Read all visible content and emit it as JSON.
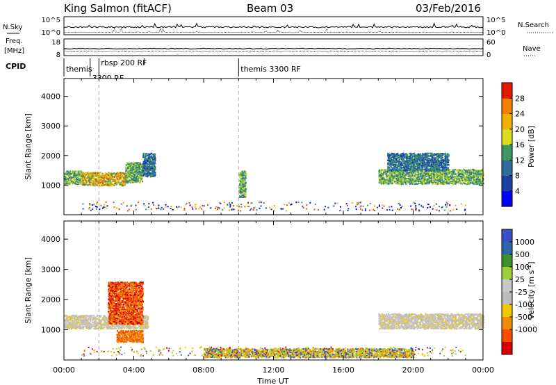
{
  "header": {
    "station": "King Salmon (fitACF)",
    "beam": "Beam 03",
    "date": "03/Feb/2016"
  },
  "noise_panel": {
    "left_label": "N.Sky",
    "right_label": "N.Search",
    "left_ticks": [
      "10^5",
      "10^0"
    ],
    "right_ticks": [
      "10^5",
      "10^0"
    ]
  },
  "freq_panel": {
    "left_label_1": "Freq.",
    "left_label_2": "[MHz]",
    "right_label": "Nave",
    "left_ticks": [
      "18",
      "8"
    ],
    "right_ticks": [
      "60",
      "0"
    ]
  },
  "cpid": {
    "label": "CPID",
    "segments": [
      {
        "start_hour": 0.0,
        "text": "themis"
      },
      {
        "start_hour": 1.5,
        "text": "3300 RF"
      },
      {
        "start_hour": 2.0,
        "text": "rbsp 200 RF"
      },
      {
        "start_hour": 10.0,
        "text": "themis 3300 RF"
      }
    ]
  },
  "colors": {
    "power": [
      "#0000ff",
      "#1d3fa8",
      "#2e6fa0",
      "#3d9960",
      "#79c043",
      "#dcdc1e",
      "#f2b000",
      "#f27f00",
      "#f04a00",
      "#e31a00",
      "#d70000"
    ],
    "velocity": [
      "#3a4fc8",
      "#2f66a8",
      "#3f8f2f",
      "#9bd03a",
      "#c8c8c8",
      "#bcbcbc",
      "#f0c800",
      "#f08c00",
      "#f05000",
      "#d70000"
    ]
  },
  "chart_data": [
    {
      "type": "heatmap",
      "name": "power",
      "xlabel": "",
      "ylabel": "Slant Range [km]",
      "xlim": [
        0,
        24
      ],
      "ylim": [
        0,
        4600
      ],
      "yticks": [
        1000,
        2000,
        3000,
        4000
      ],
      "colorbar_label": "Power [dB]",
      "colorbar_range": [
        0,
        32
      ],
      "colorbar_ticks": [
        4,
        8,
        12,
        16,
        20,
        24,
        28
      ],
      "dashed_lines_hours": [
        2.0,
        10.0
      ],
      "regions": [
        {
          "t": [
            0.0,
            1.0
          ],
          "r": [
            1050,
            1500
          ],
          "level": "medium"
        },
        {
          "t": [
            1.0,
            3.5
          ],
          "r": [
            1000,
            1450
          ],
          "level": "high"
        },
        {
          "t": [
            3.5,
            4.5
          ],
          "r": [
            1100,
            1800
          ],
          "level": "medium"
        },
        {
          "t": [
            4.5,
            5.2
          ],
          "r": [
            1300,
            2100
          ],
          "level": "low"
        },
        {
          "t": [
            18.0,
            24.0
          ],
          "r": [
            1050,
            1550
          ],
          "level": "medium"
        },
        {
          "t": [
            18.5,
            22.0
          ],
          "r": [
            1500,
            2100
          ],
          "level": "low"
        },
        {
          "t": [
            10.0,
            10.4
          ],
          "r": [
            600,
            1500
          ],
          "level": "medium"
        }
      ]
    },
    {
      "type": "heatmap",
      "name": "velocity",
      "xlabel": "Time UT",
      "ylabel": "Slant Range [km]",
      "xlim": [
        0,
        24
      ],
      "ylim": [
        0,
        4600
      ],
      "yticks": [
        1000,
        2000,
        3000,
        4000
      ],
      "xticks": [
        "00:00",
        "04:00",
        "08:00",
        "12:00",
        "16:00",
        "20:00",
        "00:00"
      ],
      "colorbar_label": "Velocity [m s-1]",
      "colorbar_ticks": [
        "1000",
        "500",
        "100",
        "25",
        "-25",
        "-100",
        "-500",
        "-1000"
      ],
      "dashed_lines_hours": [
        2.0,
        10.0
      ],
      "regions": [
        {
          "t": [
            0.0,
            4.8
          ],
          "r": [
            1050,
            1500
          ],
          "color": "grey"
        },
        {
          "t": [
            2.5,
            4.5
          ],
          "r": [
            1200,
            2600
          ],
          "color": "red"
        },
        {
          "t": [
            3.0,
            4.5
          ],
          "r": [
            600,
            1000
          ],
          "color": "orange"
        },
        {
          "t": [
            18.0,
            24.0
          ],
          "r": [
            1050,
            1550
          ],
          "color": "grey"
        },
        {
          "t": [
            8.0,
            20.0
          ],
          "r": [
            100,
            400
          ],
          "color": "yellow"
        }
      ]
    }
  ]
}
